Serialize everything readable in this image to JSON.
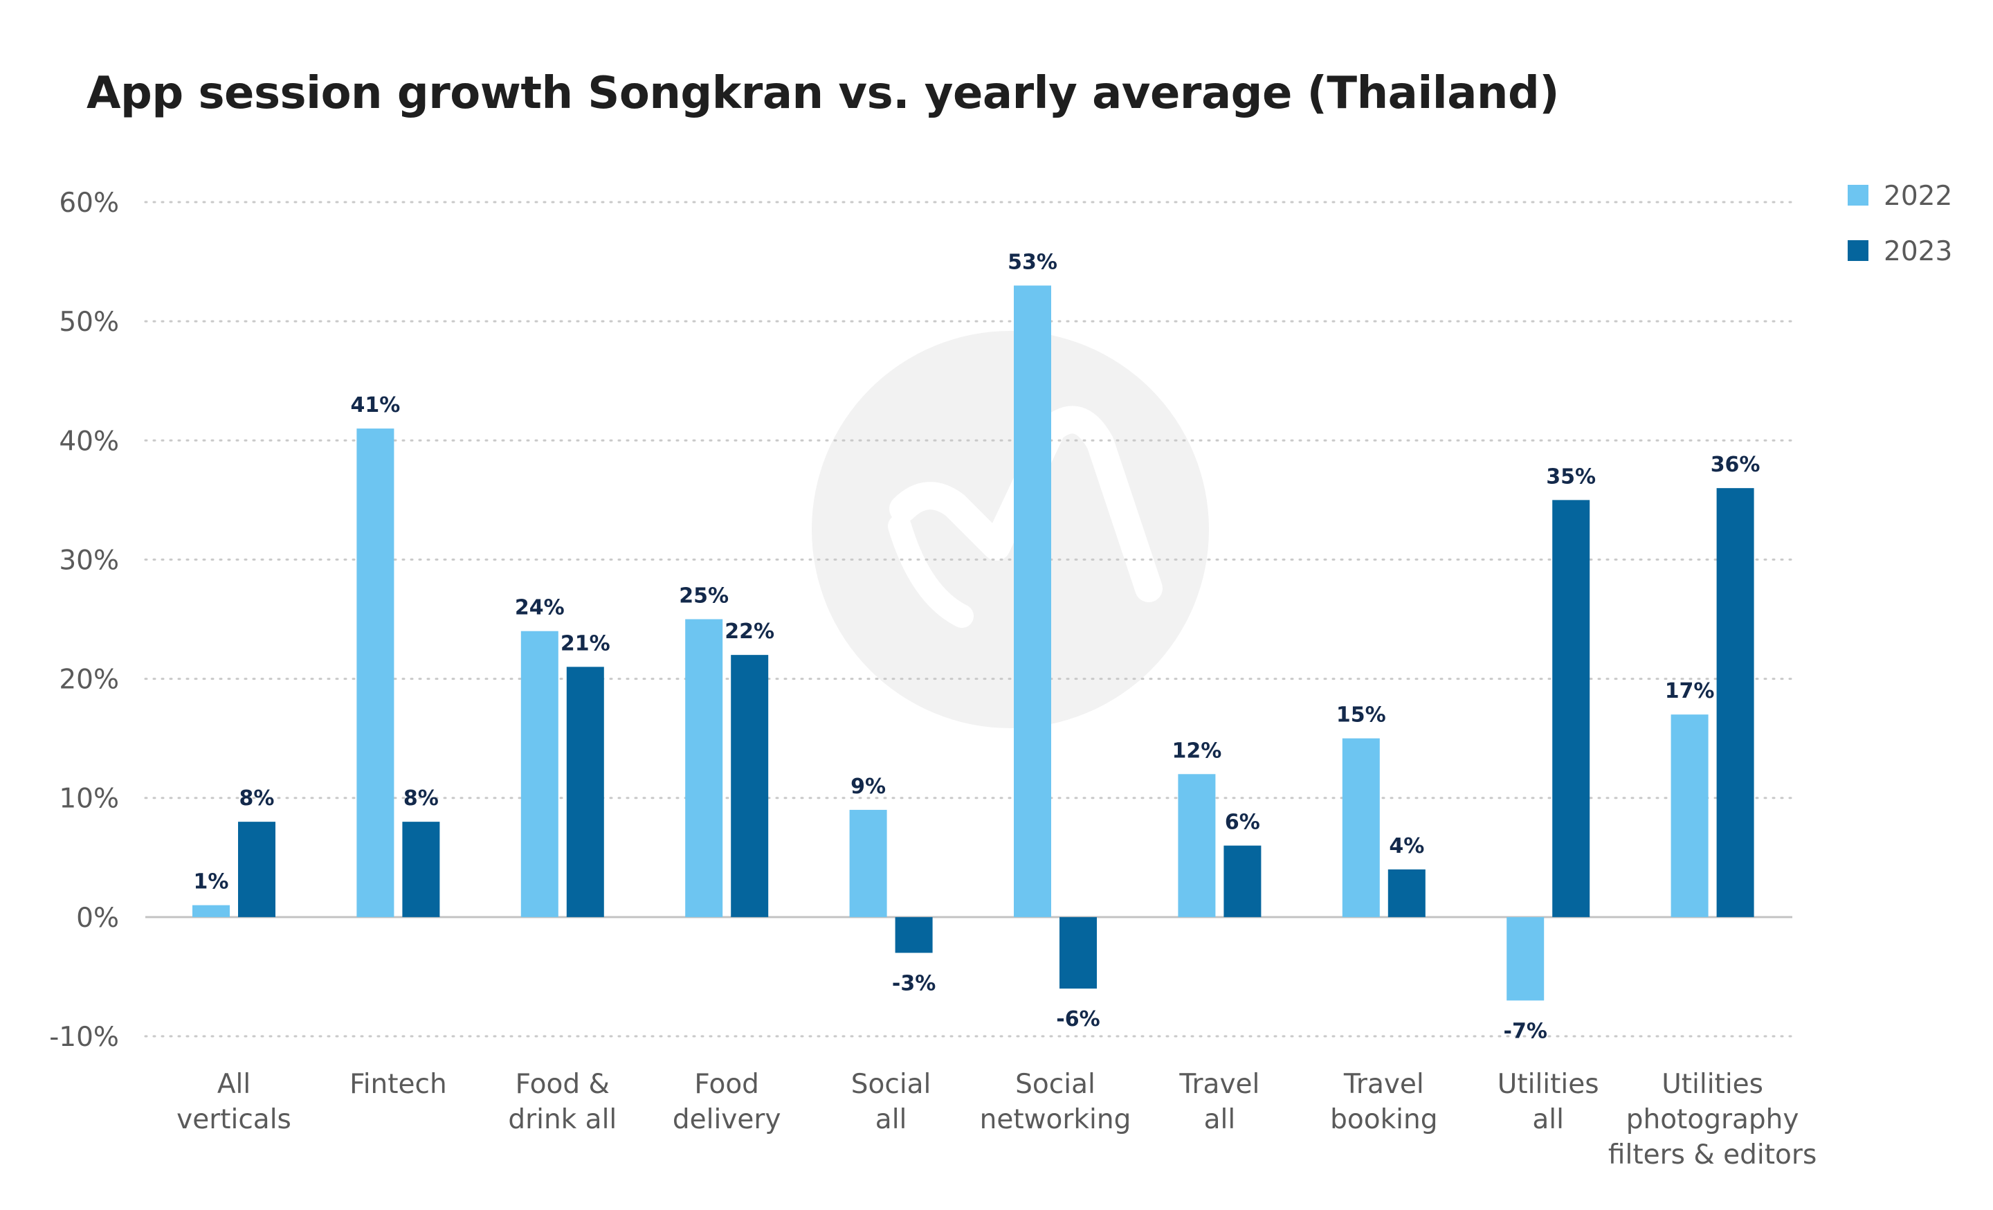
{
  "title": "App session growth Songkran vs. yearly average (Thailand)",
  "chart_data": {
    "type": "bar",
    "title": "App session growth Songkran vs. yearly average (Thailand)",
    "xlabel": "",
    "ylabel": "",
    "ylim": [
      -10,
      60
    ],
    "y_ticks": [
      -10,
      0,
      10,
      20,
      30,
      40,
      50,
      60
    ],
    "y_tick_labels": [
      "-10%",
      "0%",
      "10%",
      "20%",
      "30%",
      "40%",
      "50%",
      "60%"
    ],
    "value_suffix": "%",
    "grid": true,
    "legend_position": "top-right",
    "categories": [
      [
        "All",
        "verticals"
      ],
      [
        "Fintech"
      ],
      [
        "Food &",
        "drink all"
      ],
      [
        "Food",
        "delivery"
      ],
      [
        "Social",
        "all"
      ],
      [
        "Social",
        "networking"
      ],
      [
        "Travel",
        "all"
      ],
      [
        "Travel",
        "booking"
      ],
      [
        "Utilities",
        "all"
      ],
      [
        "Utilities",
        "photography",
        "filters & editors"
      ]
    ],
    "series": [
      {
        "name": "2022",
        "color": "#6dc5f1",
        "values": [
          1,
          41,
          24,
          25,
          9,
          53,
          12,
          15,
          -7,
          17
        ]
      },
      {
        "name": "2023",
        "color": "#05659d",
        "values": [
          8,
          8,
          21,
          22,
          -3,
          -6,
          6,
          4,
          35,
          36
        ]
      }
    ],
    "colors": {
      "grid": "#c9c9c9",
      "zero_line": "#c4c4c4",
      "data_label": "#13294b",
      "watermark": "#f2f2f2"
    }
  }
}
